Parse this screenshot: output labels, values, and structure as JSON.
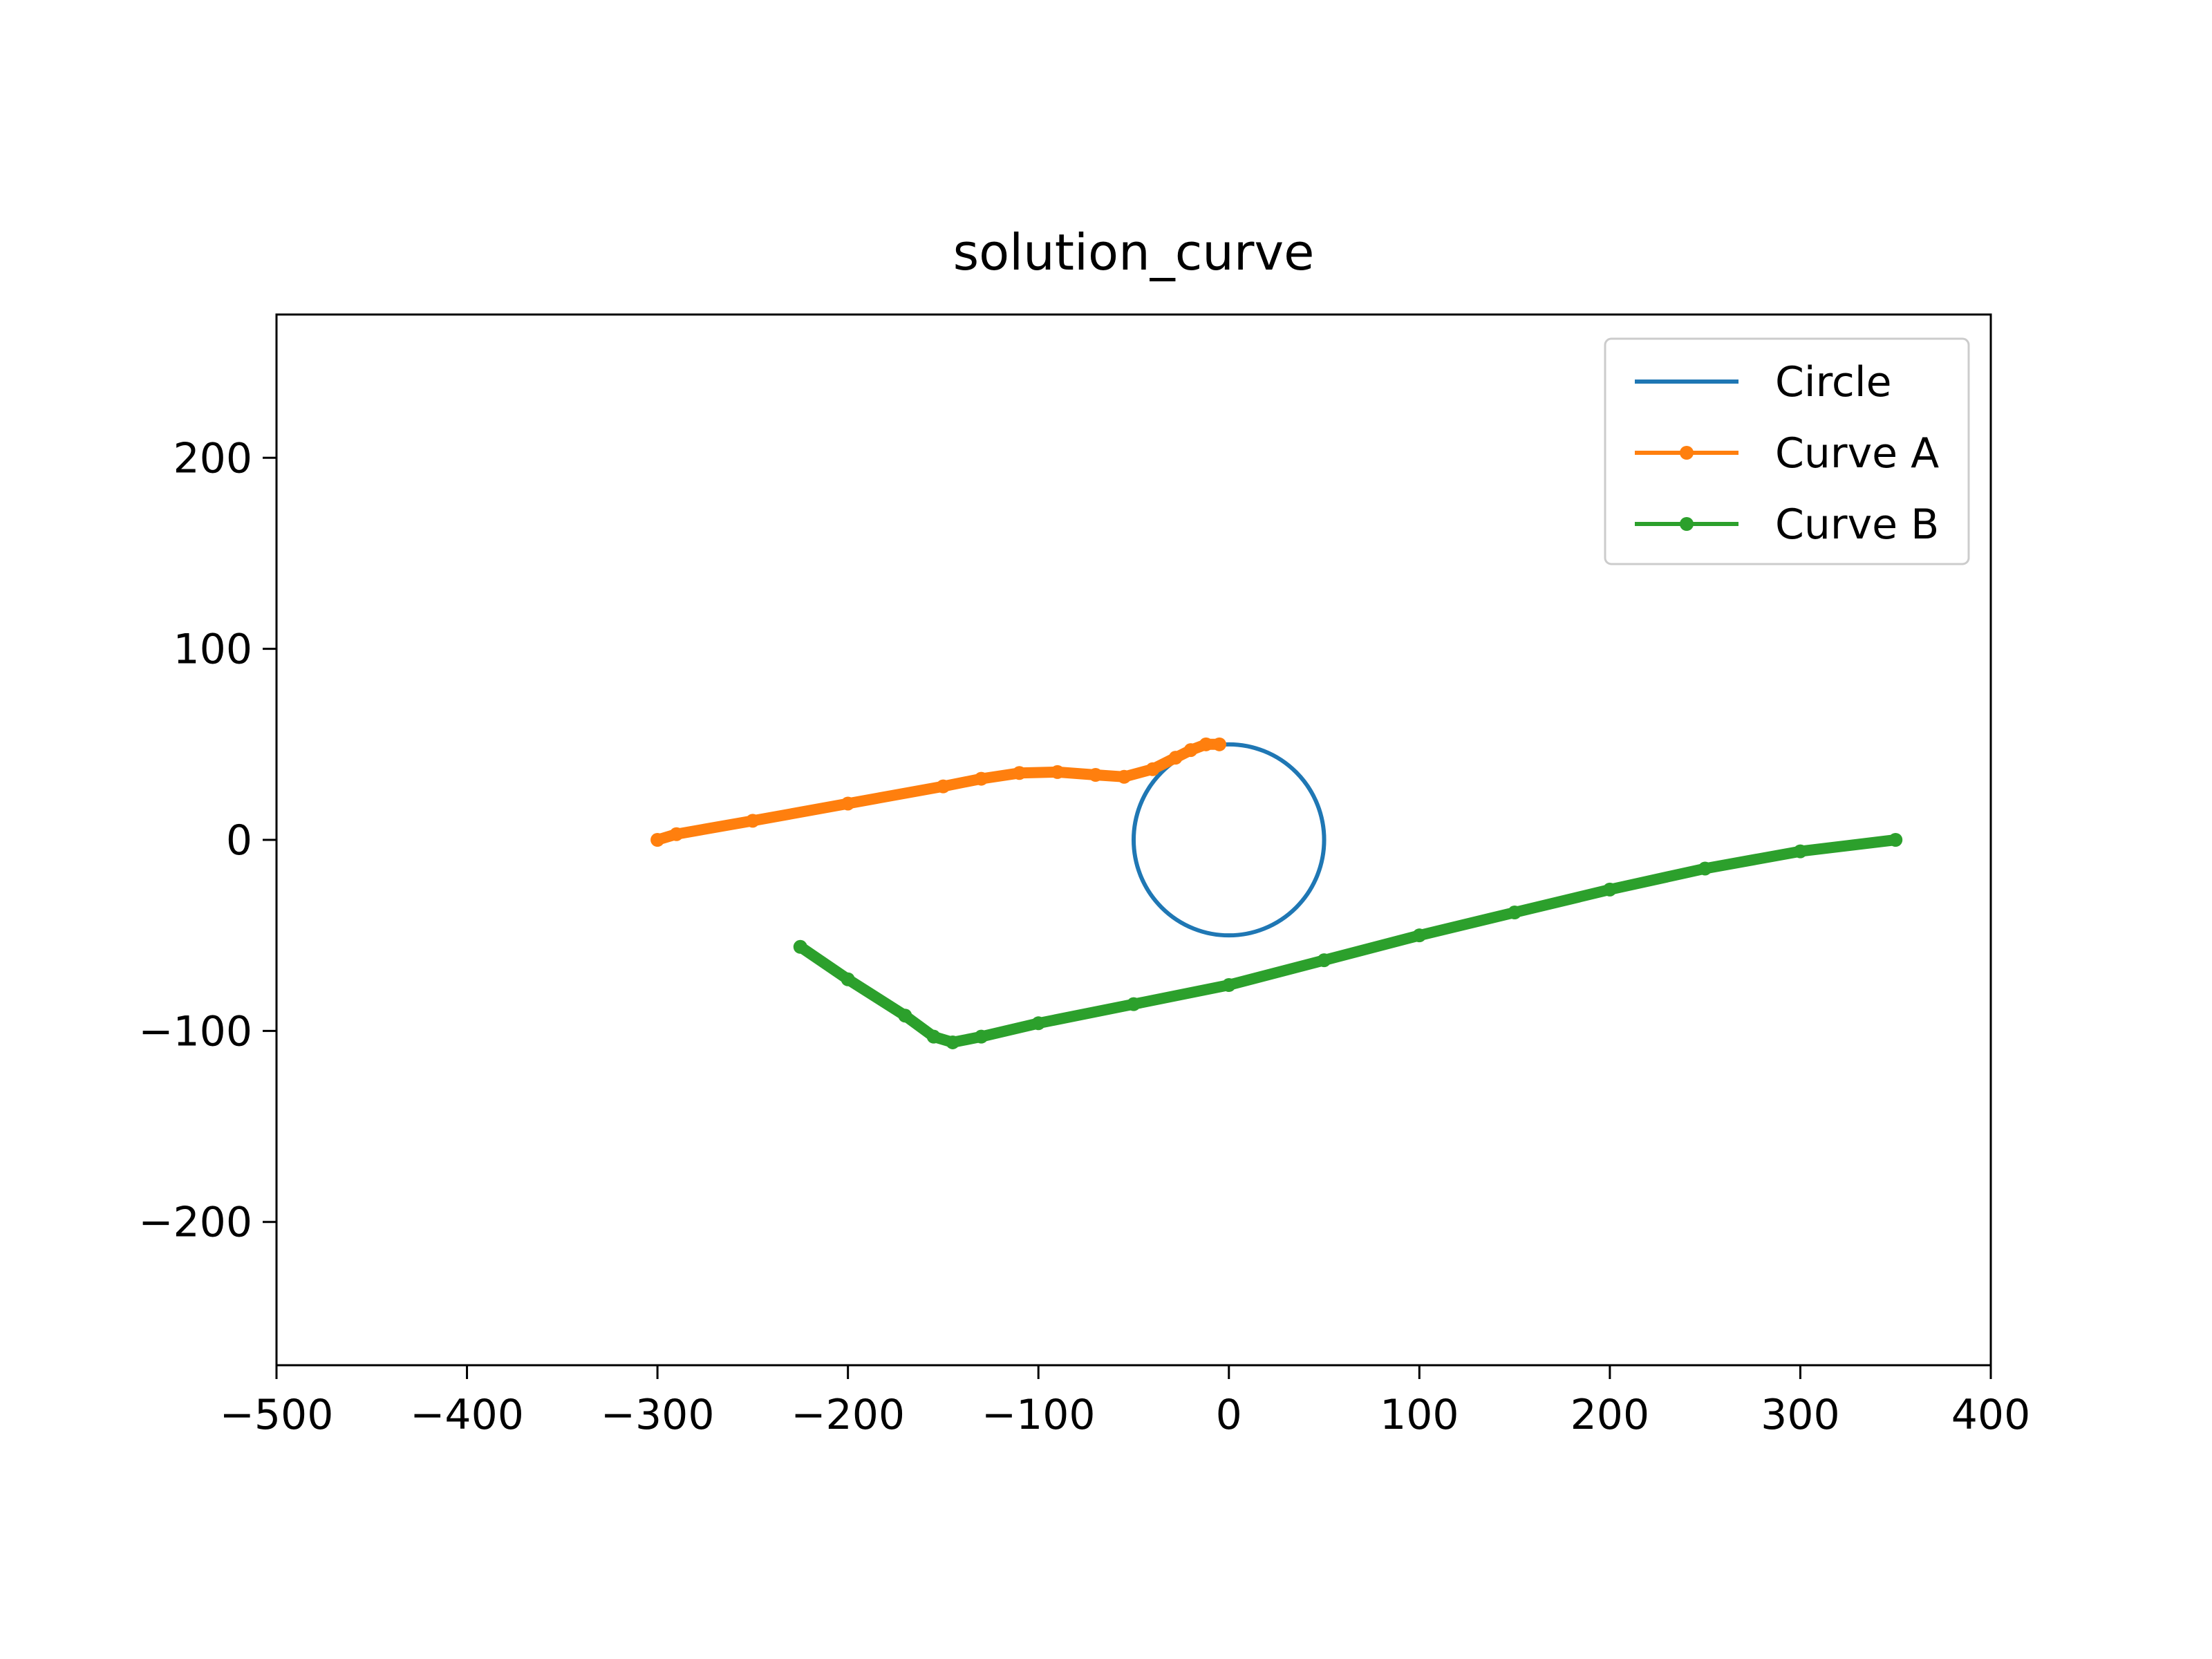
{
  "chart_data": {
    "type": "line",
    "title": "solution_curve",
    "xlabel": "",
    "ylabel": "",
    "xlim": [
      -500,
      400
    ],
    "ylim": [
      -275,
      275
    ],
    "xticks": [
      {
        "value": -500,
        "label": "−500"
      },
      {
        "value": -400,
        "label": "−400"
      },
      {
        "value": -300,
        "label": "−300"
      },
      {
        "value": -200,
        "label": "−200"
      },
      {
        "value": -100,
        "label": "−100"
      },
      {
        "value": 0,
        "label": "0"
      },
      {
        "value": 100,
        "label": "100"
      },
      {
        "value": 200,
        "label": "200"
      },
      {
        "value": 300,
        "label": "300"
      },
      {
        "value": 400,
        "label": "400"
      }
    ],
    "yticks": [
      {
        "value": 200,
        "label": "200"
      },
      {
        "value": 100,
        "label": "100"
      },
      {
        "value": 0,
        "label": "0"
      },
      {
        "value": -100,
        "label": "−100"
      },
      {
        "value": -200,
        "label": "−200"
      }
    ],
    "grid": false,
    "legend_position": "top-right",
    "series": [
      {
        "name": "Circle",
        "color": "#1f77b4",
        "style": "line",
        "center": [
          0,
          0
        ],
        "radius": 50
      },
      {
        "name": "Curve A",
        "color": "#ff7f0e",
        "style": "line-dense-markers",
        "points": [
          [
            -300,
            0
          ],
          [
            -290,
            3
          ],
          [
            -250,
            10
          ],
          [
            -200,
            19
          ],
          [
            -150,
            28
          ],
          [
            -130,
            32
          ],
          [
            -110,
            35
          ],
          [
            -90,
            35.5
          ],
          [
            -70,
            34
          ],
          [
            -55,
            33
          ],
          [
            -40,
            37
          ],
          [
            -28,
            43
          ],
          [
            -20,
            47
          ],
          [
            -12,
            50
          ],
          [
            -5,
            50
          ]
        ]
      },
      {
        "name": "Curve B",
        "color": "#2ca02c",
        "style": "line-dense-markers",
        "points": [
          [
            -225,
            -56
          ],
          [
            -200,
            -73
          ],
          [
            -170,
            -92
          ],
          [
            -155,
            -103
          ],
          [
            -145,
            -106
          ],
          [
            -130,
            -103
          ],
          [
            -100,
            -96
          ],
          [
            -50,
            -86
          ],
          [
            0,
            -76
          ],
          [
            50,
            -63
          ],
          [
            100,
            -50
          ],
          [
            150,
            -38
          ],
          [
            200,
            -26
          ],
          [
            250,
            -15
          ],
          [
            300,
            -6
          ],
          [
            350,
            0
          ]
        ]
      }
    ]
  }
}
